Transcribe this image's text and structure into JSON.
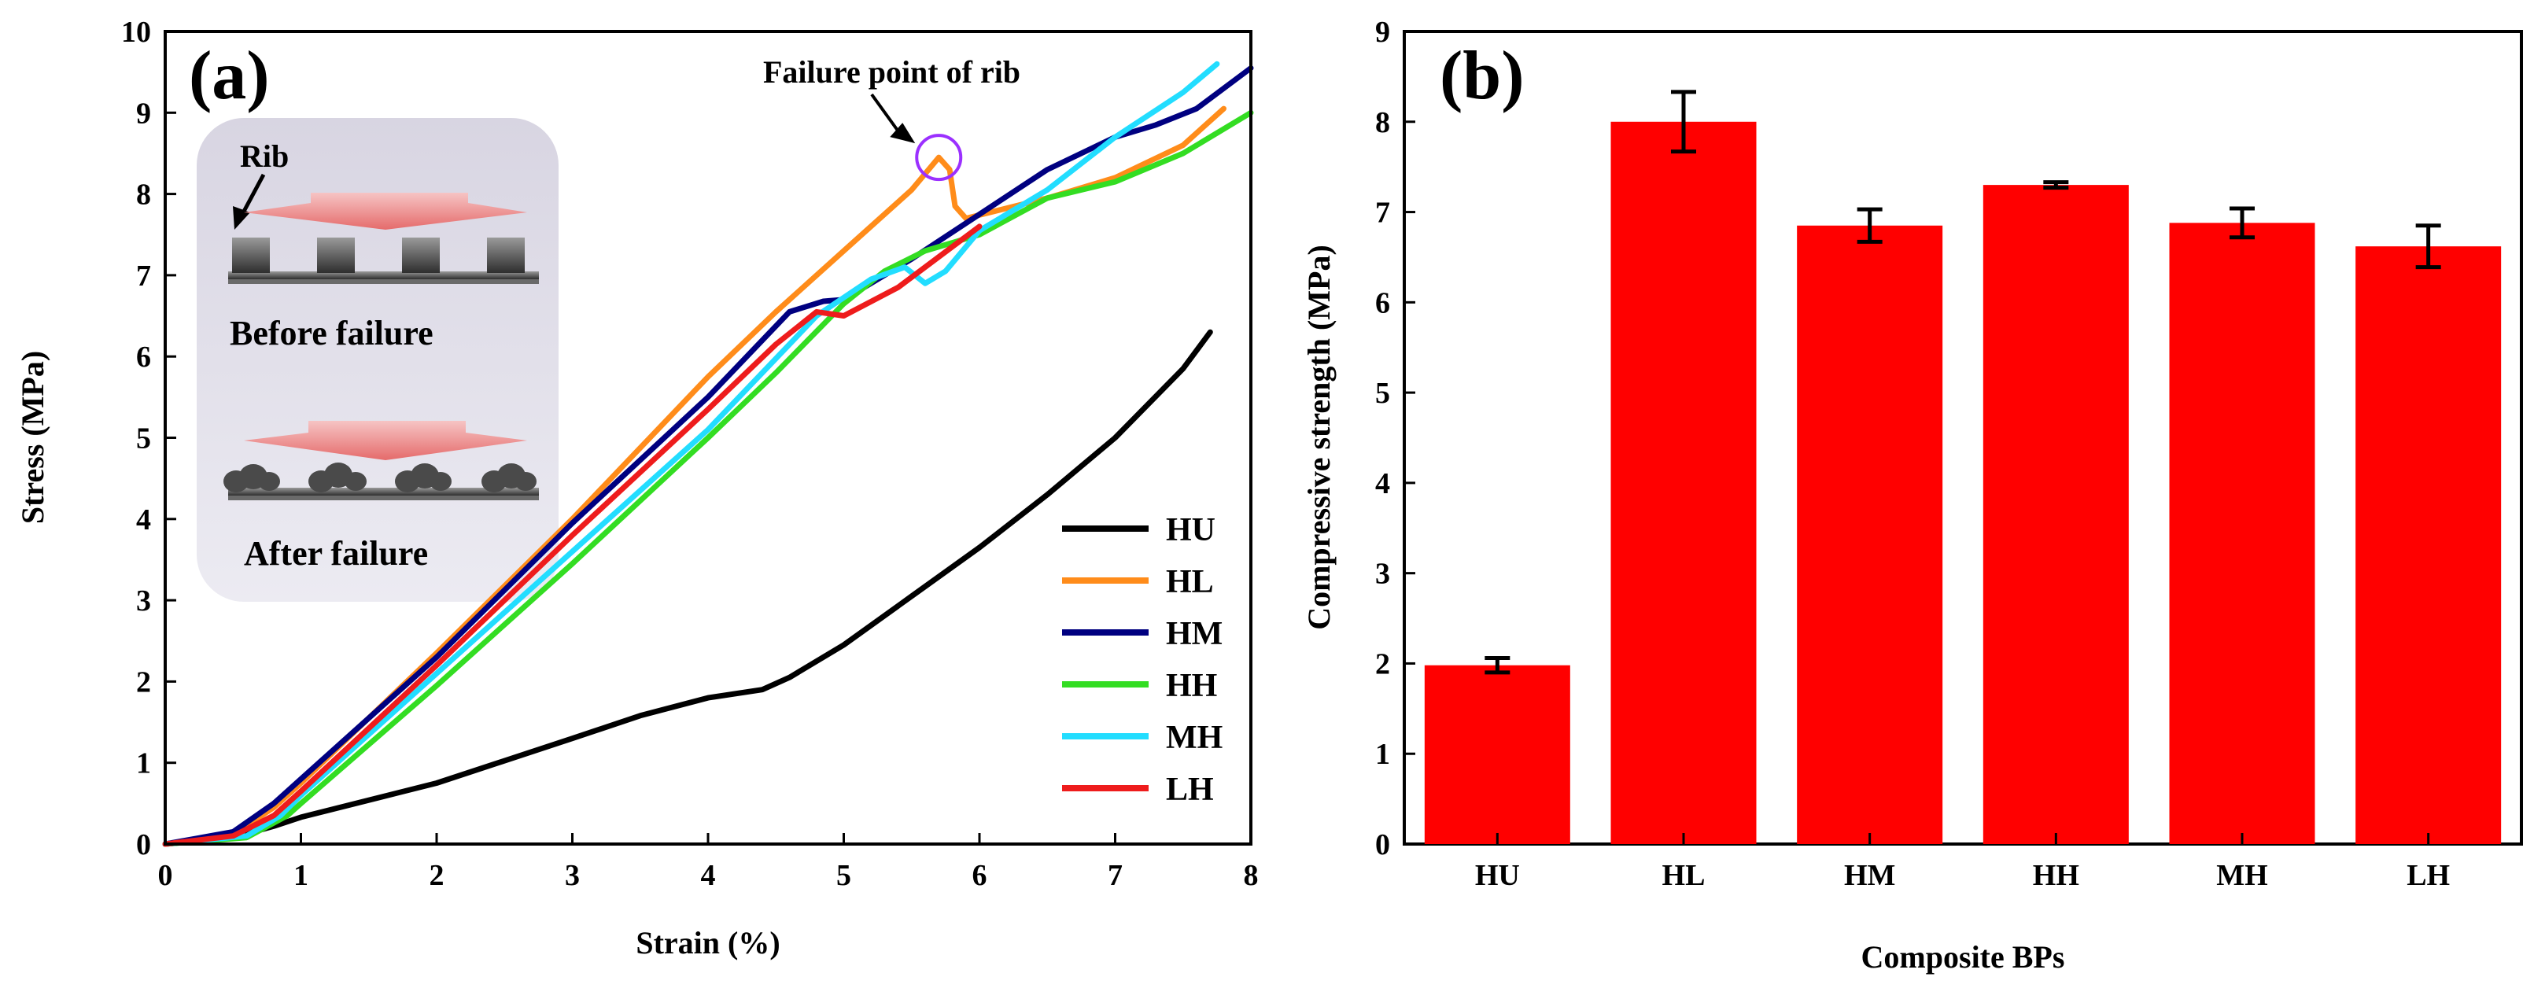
{
  "chart_data": [
    {
      "type": "line",
      "panel_label": "(a)",
      "xlabel": "Strain (%)",
      "ylabel": "Stress (MPa)",
      "xlim": [
        0,
        8
      ],
      "ylim": [
        0,
        10
      ],
      "x_ticks": [
        "0",
        "1",
        "2",
        "3",
        "4",
        "5",
        "6",
        "7",
        "8"
      ],
      "y_ticks": [
        "0",
        "1",
        "2",
        "3",
        "4",
        "5",
        "6",
        "7",
        "8",
        "9",
        "10"
      ],
      "legend_position": "bottom-right",
      "annotation": {
        "text": "Failure point of rib",
        "x": 5.7,
        "y": 8.45
      },
      "inset": {
        "rib_label": "Rib",
        "before_label": "Before failure",
        "after_label": "After failure"
      },
      "series": [
        {
          "name": "HU",
          "color": "#000000",
          "points": [
            [
              0,
              0
            ],
            [
              0.5,
              0.08
            ],
            [
              0.8,
              0.22
            ],
            [
              1,
              0.33
            ],
            [
              2,
              0.75
            ],
            [
              3,
              1.3
            ],
            [
              3.5,
              1.58
            ],
            [
              4,
              1.8
            ],
            [
              4.4,
              1.9
            ],
            [
              4.6,
              2.05
            ],
            [
              5,
              2.45
            ],
            [
              5.5,
              3.05
            ],
            [
              6,
              3.65
            ],
            [
              6.5,
              4.3
            ],
            [
              7,
              5.0
            ],
            [
              7.5,
              5.85
            ],
            [
              7.7,
              6.3
            ]
          ]
        },
        {
          "name": "HL",
          "color": "#ff8c1a",
          "points": [
            [
              0,
              0
            ],
            [
              0.5,
              0.12
            ],
            [
              0.8,
              0.45
            ],
            [
              1,
              0.75
            ],
            [
              2,
              2.35
            ],
            [
              3,
              4.0
            ],
            [
              4,
              5.75
            ],
            [
              4.5,
              6.55
            ],
            [
              5,
              7.3
            ],
            [
              5.5,
              8.05
            ],
            [
              5.7,
              8.45
            ],
            [
              5.78,
              8.3
            ],
            [
              5.82,
              7.85
            ],
            [
              5.9,
              7.7
            ],
            [
              6.5,
              7.95
            ],
            [
              7,
              8.2
            ],
            [
              7.5,
              8.6
            ],
            [
              7.8,
              9.05
            ]
          ]
        },
        {
          "name": "HM",
          "color": "#000080",
          "points": [
            [
              0,
              0
            ],
            [
              0.5,
              0.15
            ],
            [
              0.8,
              0.5
            ],
            [
              1,
              0.8
            ],
            [
              2,
              2.3
            ],
            [
              3,
              3.95
            ],
            [
              4,
              5.5
            ],
            [
              4.6,
              6.55
            ],
            [
              4.85,
              6.68
            ],
            [
              5,
              6.7
            ],
            [
              5.5,
              7.2
            ],
            [
              6,
              7.75
            ],
            [
              6.5,
              8.3
            ],
            [
              7,
              8.7
            ],
            [
              7.3,
              8.85
            ],
            [
              7.6,
              9.05
            ],
            [
              8,
              9.55
            ]
          ]
        },
        {
          "name": "HH",
          "color": "#33dd22",
          "points": [
            [
              0,
              0
            ],
            [
              0.6,
              0.08
            ],
            [
              0.9,
              0.35
            ],
            [
              1,
              0.5
            ],
            [
              2,
              1.95
            ],
            [
              3,
              3.45
            ],
            [
              4,
              5.0
            ],
            [
              4.5,
              5.8
            ],
            [
              5,
              6.65
            ],
            [
              5.3,
              7.05
            ],
            [
              5.6,
              7.3
            ],
            [
              6,
              7.5
            ],
            [
              6.5,
              7.95
            ],
            [
              7,
              8.15
            ],
            [
              7.5,
              8.5
            ],
            [
              8,
              9.0
            ]
          ]
        },
        {
          "name": "MH",
          "color": "#22ddff",
          "points": [
            [
              0,
              0
            ],
            [
              0.6,
              0.1
            ],
            [
              0.85,
              0.35
            ],
            [
              1,
              0.6
            ],
            [
              2,
              2.1
            ],
            [
              3,
              3.6
            ],
            [
              4,
              5.1
            ],
            [
              4.8,
              6.5
            ],
            [
              5.2,
              6.95
            ],
            [
              5.45,
              7.1
            ],
            [
              5.6,
              6.9
            ],
            [
              5.75,
              7.05
            ],
            [
              6,
              7.55
            ],
            [
              6.5,
              8.05
            ],
            [
              7,
              8.7
            ],
            [
              7.5,
              9.25
            ],
            [
              7.75,
              9.6
            ]
          ]
        },
        {
          "name": "LH",
          "color": "#ee1c1c",
          "points": [
            [
              0,
              0
            ],
            [
              0.5,
              0.1
            ],
            [
              0.8,
              0.35
            ],
            [
              1,
              0.65
            ],
            [
              2,
              2.2
            ],
            [
              3,
              3.8
            ],
            [
              4,
              5.35
            ],
            [
              4.5,
              6.15
            ],
            [
              4.8,
              6.55
            ],
            [
              5,
              6.5
            ],
            [
              5.4,
              6.85
            ],
            [
              5.8,
              7.35
            ],
            [
              6,
              7.6
            ]
          ]
        }
      ]
    },
    {
      "type": "bar",
      "panel_label": "(b)",
      "xlabel": "Composite BPs",
      "ylabel": "Compressive strength (MPa)",
      "ylim": [
        0,
        9
      ],
      "y_ticks": [
        "0",
        "1",
        "2",
        "3",
        "4",
        "5",
        "6",
        "7",
        "8",
        "9"
      ],
      "categories": [
        "HU",
        "HL",
        "HM",
        "HH",
        "MH",
        "LH"
      ],
      "values": [
        1.98,
        8.0,
        6.85,
        7.3,
        6.88,
        6.62
      ],
      "errors": [
        0.08,
        0.33,
        0.18,
        0.03,
        0.16,
        0.23
      ],
      "bar_color": "#ff0000"
    }
  ]
}
